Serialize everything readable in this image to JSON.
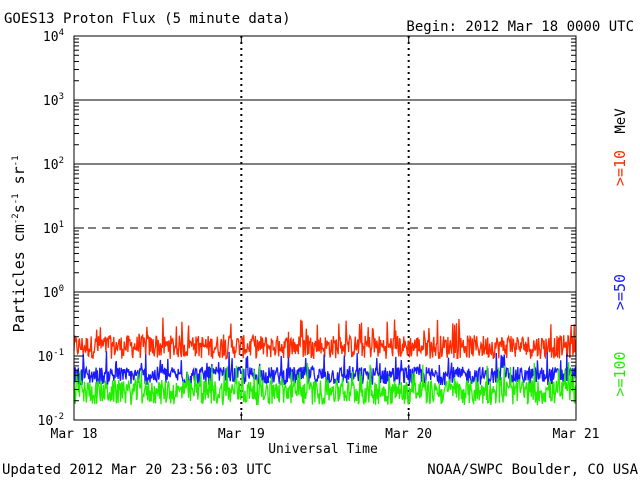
{
  "chart_data": {
    "type": "line",
    "title": "GOES13 Proton Flux (5 minute data)",
    "begin_label": "Begin: 2012 Mar 18 0000 UTC",
    "xlabel": "Universal Time",
    "ylabel_main": "Particles cm",
    "ylabel_exps": [
      "-2",
      "-1",
      "-1"
    ],
    "ylabel_units": [
      "s",
      "sr"
    ],
    "energy_unit": "MeV",
    "x_ticks": [
      "Mar 18",
      "Mar 19",
      "Mar 20",
      "Mar 21"
    ],
    "y_scale": "log",
    "ylim": [
      0.01,
      10000
    ],
    "y_tick_exponents": [
      "-2",
      "-1",
      "0",
      "1",
      "2",
      "3",
      "4"
    ],
    "y_tick_base": "10",
    "threshold_lines": [
      1,
      10,
      100,
      1000,
      10000
    ],
    "series": [
      {
        "name": ">=10",
        "color": "#ff2a00",
        "typical_value": 0.15,
        "min": 0.09,
        "max": 0.4
      },
      {
        "name": ">=50",
        "color": "#1a1aff",
        "typical_value": 0.05,
        "min": 0.035,
        "max": 0.12
      },
      {
        "name": ">=100",
        "color": "#22ee00",
        "typical_value": 0.03,
        "min": 0.017,
        "max": 0.08
      }
    ]
  },
  "footer": {
    "updated": "Updated 2012 Mar 20 23:56:03 UTC",
    "credit": "NOAA/SWPC Boulder, CO USA"
  }
}
